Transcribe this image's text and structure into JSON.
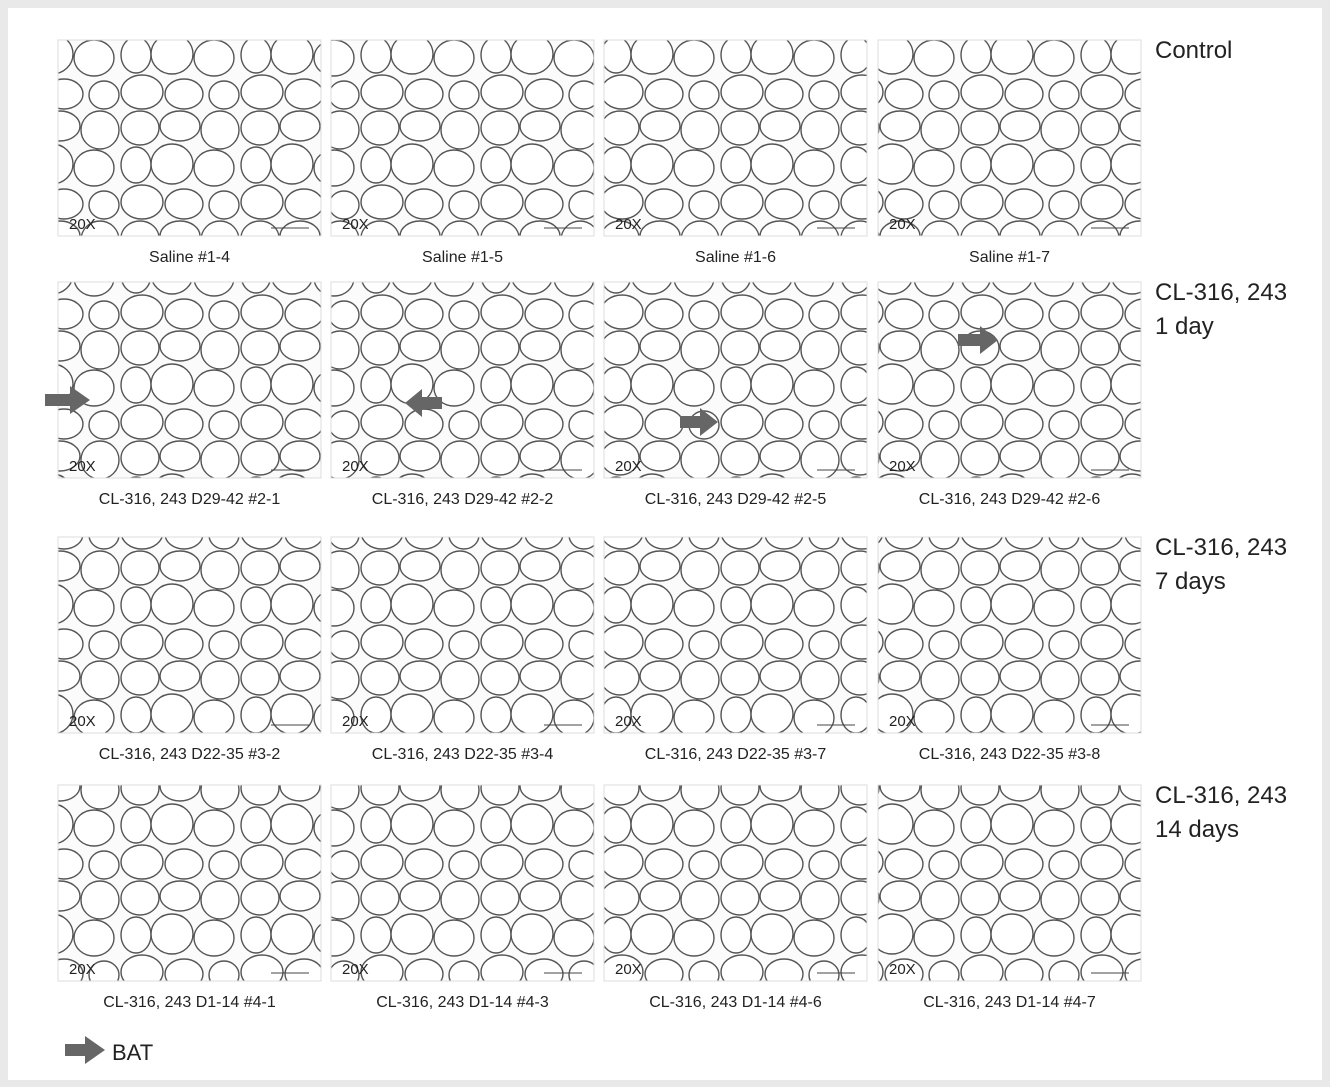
{
  "rows": [
    {
      "label_lines": [
        "Control"
      ],
      "panels": [
        {
          "magnification": "20X",
          "caption": "Saline #1-4"
        },
        {
          "magnification": "20X",
          "caption": "Saline #1-5"
        },
        {
          "magnification": "20X",
          "caption": "Saline #1-6"
        },
        {
          "magnification": "20X",
          "caption": "Saline #1-7"
        }
      ]
    },
    {
      "label_lines": [
        "CL-316, 243",
        "1 day"
      ],
      "panels": [
        {
          "magnification": "20X",
          "caption": "CL-316, 243 D29-42 #2-1"
        },
        {
          "magnification": "20X",
          "caption": "CL-316, 243 D29-42 #2-2"
        },
        {
          "magnification": "20X",
          "caption": "CL-316, 243 D29-42 #2-5"
        },
        {
          "magnification": "20X",
          "caption": "CL-316, 243 D29-42 #2-6"
        }
      ]
    },
    {
      "label_lines": [
        "CL-316, 243",
        "7 days"
      ],
      "panels": [
        {
          "magnification": "20X",
          "caption": "CL-316, 243 D22-35 #3-2"
        },
        {
          "magnification": "20X",
          "caption": "CL-316, 243 D22-35 #3-4"
        },
        {
          "magnification": "20X",
          "caption": "CL-316, 243 D22-35 #3-7"
        },
        {
          "magnification": "20X",
          "caption": "CL-316, 243 D22-35 #3-8"
        }
      ]
    },
    {
      "label_lines": [
        "CL-316, 243",
        "14 days"
      ],
      "panels": [
        {
          "magnification": "20X",
          "caption": "CL-316, 243 D1-14 #4-1"
        },
        {
          "magnification": "20X",
          "caption": "CL-316, 243 D1-14 #4-3"
        },
        {
          "magnification": "20X",
          "caption": "CL-316, 243 D1-14 #4-6"
        },
        {
          "magnification": "20X",
          "caption": "CL-316, 243 D1-14 #4-7"
        }
      ]
    }
  ],
  "legend": {
    "label": "BAT"
  }
}
